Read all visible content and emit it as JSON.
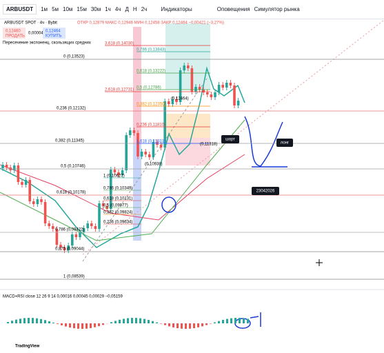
{
  "toolbar": {
    "symbol": "ARBUSDT",
    "intervals": [
      "1м",
      "5м",
      "10м",
      "15м",
      "30м",
      "1ч",
      "4ч",
      "Д",
      "Н",
      "2ч"
    ],
    "indicators": "Индикаторы",
    "alerts": "Оповещения",
    "replay": "Симулятор рынка"
  },
  "legend": {
    "title": "ARBUSDT SPOT · 4ч · Bybit",
    "ohlc": "ОТКР 0,12879 МАКС 0,12946 МИН 0,12458 ЗАКР 0,12464 −0,00421 (−3,27%)",
    "sell_price": "0,12460",
    "sell": "ПРОДАТЬ",
    "spread": "0,00004",
    "buy_price": "0,12464",
    "buy": "КУПИТЬ",
    "indicator": "Пересечение экспоненц. скользящих средних"
  },
  "fib_main": [
    "0 (0,13523)",
    "0,236 (0,12132)",
    "0,382 (0,11345)",
    "0,5 (0,10746)",
    "0,618 (0,10178)",
    "0,786 (0,09422)",
    "0,875 (0,09044)",
    "1 (0,08539)"
  ],
  "fib_ext": [
    "3,618 (0,14030)",
    "0,786 (0,13843)",
    "0,618 (0,13222)",
    "2,618 (0,12731)",
    "0,5 (0,12786)",
    "0,382 (0,12350)",
    "0,236 (0,11810)",
    "1,618 (0,11431)"
  ],
  "price_marks": [
    "(0,12464)",
    "(0,11318)",
    "(0,10938)"
  ],
  "fib_low": [
    "1 (0,10627)",
    "0,786 (0,10349)",
    "0,618 (0,10131)",
    "0,5 (0,09977)",
    "0,382 (0,09824)",
    "0,236 (0,09634)"
  ],
  "labels": {
    "short": "шорт",
    "long": "лонг",
    "date": "23042026"
  },
  "macd": "MACD+RSI close 12 26 9 14 0,00016 0,00045 0,00029 −0,05159",
  "brand": "TradingView"
}
